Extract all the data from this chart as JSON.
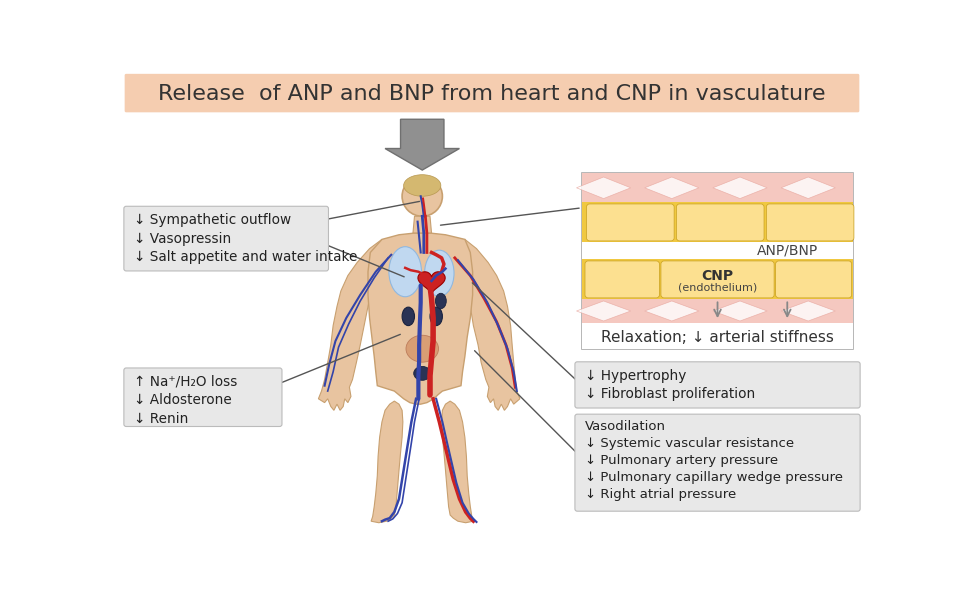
{
  "title": "Release  of ANP and BNP from heart and CNP in vasculature",
  "title_bg": "#f5cdb0",
  "title_fontsize": 16,
  "fig_bg": "#ffffff",
  "left_box1_lines": [
    "↓ Sympathetic outflow",
    "↓ Vasopressin",
    "↓ Salt appetite and water intake"
  ],
  "left_box2_lines": [
    "↑ Na⁺/H₂O loss",
    "↓ Aldosterone",
    "↓ Renin"
  ],
  "right_box1_lines": [
    "↓ Hypertrophy",
    "↓ Fibroblast proliferation"
  ],
  "right_box2_lines": [
    "Vasodilation",
    "↓ Systemic vascular resistance",
    "↓ Pulmonary artery pressure",
    "↓ Pulmonary capillary wedge pressure",
    "↓ Right atrial pressure"
  ],
  "anp_bnp_label": "ANP/BNP",
  "cnp_label": "CNP",
  "cnp_sub": "(endothelium)",
  "relaxation_label": "Relaxation; ↓ arterial stiffness",
  "skin_color": "#e8c4a0",
  "skin_edge": "#c8a070",
  "vein_color": "#3344aa",
  "artery_color": "#cc2222",
  "lung_color": "#b8d0e8",
  "heart_color": "#cc2222",
  "kidney_color": "#334466",
  "organ_dark": "#2a3355",
  "box_bg": "#e8e8e8",
  "box_edge": "#bbbbbb",
  "line_color": "#555555"
}
